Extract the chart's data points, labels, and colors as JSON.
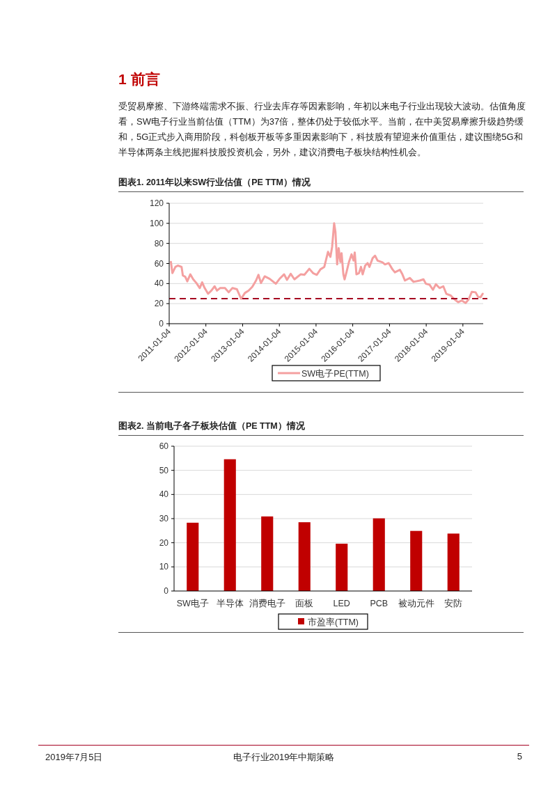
{
  "chart_data": [
    {
      "type": "other",
      "title": "1 前言",
      "annotations": [
        "受贸易摩擦、下游终端需求不振、行业去库存等因素影响，年初以来电子行业出现较大波动。估值角度看，SW电子行业当前估值（TTM）为37倍，整体仍处于较低水平。当前，在中美贸易摩擦升级趋势缓和，5G正式步入商用阶段，科创板开板等多重因素影响下，科技股有望迎来价值重估，建议围绕5G和半导体两条主线把握科技股投资机会，另外，建议消费电子板块结构性机会。"
      ]
    },
    {
      "type": "line",
      "title": "图表1.  2011年以来SW行业估值（PE TTM）情况",
      "x": [
        "2011-01-21",
        "2011-02-05",
        "2011-03-07",
        "2011-03-31",
        "2011-05-07",
        "2011-05-20",
        "2011-06-13",
        "2011-07-03",
        "2011-08-02",
        "2011-08-31",
        "2011-10-02",
        "2011-11-04",
        "2011-11-28",
        "2011-12-23",
        "2012-01-26",
        "2012-02-28",
        "2012-03-31",
        "2012-04-24",
        "2012-05-24",
        "2012-07-12",
        "2012-08-18",
        "2012-09-24",
        "2012-11-08",
        "2012-12-20",
        "2013-01-26",
        "2013-03-04",
        "2013-04-10",
        "2013-05-17",
        "2013-06-10",
        "2013-07-05",
        "2013-08-11",
        "2013-09-30",
        "2013-11-30",
        "2014-01-06",
        "2014-02-20",
        "2014-03-21",
        "2014-04-27",
        "2014-06-03",
        "2014-08-04",
        "2014-09-10",
        "2014-10-29",
        "2014-12-05",
        "2015-01-11",
        "2015-02-17",
        "2015-03-27",
        "2015-05-03",
        "2015-05-27",
        "2015-06-13",
        "2015-07-03",
        "2015-07-16",
        "2015-08-02",
        "2015-08-17",
        "2015-09-03",
        "2015-09-15",
        "2015-10-03",
        "2015-10-15",
        "2015-11-04",
        "2015-11-28",
        "2015-12-23",
        "2016-01-12",
        "2016-01-24",
        "2016-02-10",
        "2016-03-06",
        "2016-03-26",
        "2016-04-12",
        "2016-05-07",
        "2016-05-31",
        "2016-06-18",
        "2016-07-20",
        "2016-08-13",
        "2016-09-07",
        "2016-10-26",
        "2016-11-20",
        "2016-12-27",
        "2017-02-02",
        "2017-02-27",
        "2017-04-17",
        "2017-05-12",
        "2017-06-06",
        "2017-07-25",
        "2017-08-31",
        "2017-11-01",
        "2017-12-08",
        "2018-01-01",
        "2018-02-07",
        "2018-03-12",
        "2018-04-10",
        "2018-05-17",
        "2018-06-23",
        "2018-07-23",
        "2018-09-05",
        "2018-10-12",
        "2018-11-18",
        "2018-12-25",
        "2019-01-31",
        "2019-03-02",
        "2019-04-03",
        "2019-05-10",
        "2019-06-04",
        "2019-06-28",
        "2019-07-20"
      ],
      "series": [
        {
          "name": "SW电子PE(TTM)",
          "color": "#f4a0a0",
          "values": [
            61.6,
            50.4,
            56.6,
            57.9,
            56.6,
            48,
            46.7,
            42.2,
            49.2,
            44.2,
            40.5,
            35.5,
            41.2,
            35.5,
            29.8,
            33,
            37.3,
            33,
            35.5,
            35.5,
            31.3,
            35.5,
            34.3,
            24.8,
            30.6,
            33,
            36.8,
            43,
            48.7,
            40.5,
            47.2,
            44.7,
            39.8,
            44.7,
            49.2,
            43.7,
            49.7,
            44.2,
            49.2,
            48.7,
            54.7,
            50.4,
            48.7,
            54.2,
            56.6,
            71.6,
            66.6,
            76.5,
            100,
            91.4,
            59.1,
            75.3,
            61.6,
            70.3,
            49.2,
            44.2,
            51.7,
            61.6,
            69.1,
            62.9,
            71,
            49.2,
            50.4,
            56.6,
            49.2,
            57.9,
            60.4,
            56.6,
            65.3,
            67.8,
            62.9,
            61.1,
            59.1,
            60.4,
            54.2,
            51.2,
            53.7,
            49.2,
            43,
            45.5,
            41.7,
            43,
            44.2,
            39.8,
            38.8,
            33.8,
            39.3,
            35.5,
            37.3,
            29.8,
            28.1,
            24.3,
            21.4,
            23.1,
            20.6,
            24.3,
            31.8,
            31.3,
            26.8,
            26.3,
            29.8
          ]
        }
      ],
      "xlim": [
        "2011-01-04",
        "2019-07-25"
      ],
      "xticks": [
        "2011-01-04",
        "2012-01-04",
        "2013-01-04",
        "2014-01-04",
        "2015-01-04",
        "2016-01-04",
        "2017-01-04",
        "2018-01-04",
        "2019-01-04"
      ],
      "ylim": [
        0,
        120
      ],
      "yticks": [
        0,
        20,
        40,
        60,
        80,
        100,
        120
      ],
      "grid": "y",
      "legend": "bottom",
      "ref_lines": [
        {
          "axis": "y",
          "value": 25,
          "color": "#a50021",
          "line_style": "dashed"
        }
      ]
    },
    {
      "type": "bar",
      "title": "图表2.  当前电子各子板块估值（PE TTM）情况",
      "categories": [
        "SW电子",
        "半导体",
        "消费电子",
        "面板",
        "LED",
        "PCB",
        "被动元件",
        "安防"
      ],
      "series": [
        {
          "name": "市盈率(TTM)",
          "color": "#c00000",
          "values": [
            28.3,
            54.6,
            30.9,
            28.5,
            19.6,
            30.1,
            24.9,
            23.8
          ]
        }
      ],
      "ylim": [
        0,
        60
      ],
      "yticks": [
        0,
        10,
        20,
        30,
        40,
        50,
        60
      ],
      "grid": "y",
      "legend": "bottom"
    },
    {
      "type": "other",
      "annotations": [
        "2019年7月5日",
        "电子行业2019年中期策略",
        "5"
      ]
    }
  ]
}
